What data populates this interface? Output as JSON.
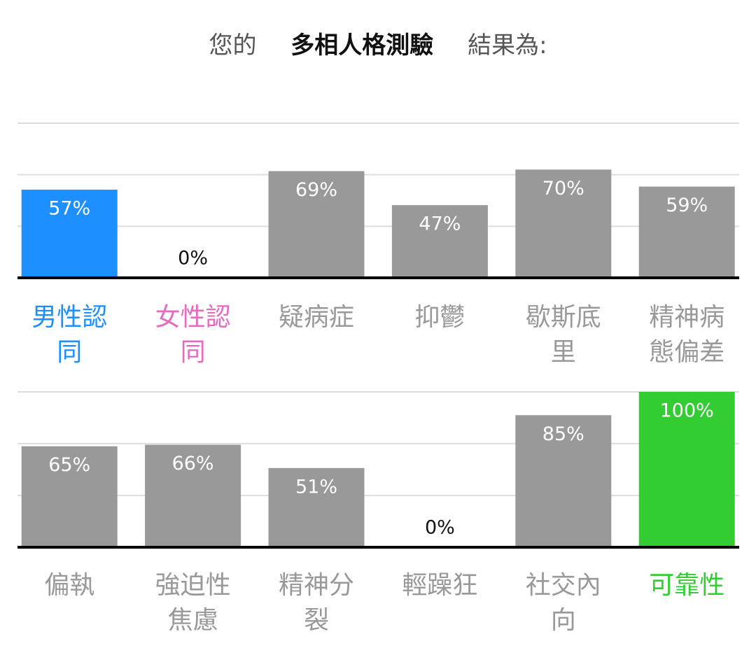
{
  "header": {
    "parts": [
      "您的",
      "多相人格測驗",
      "結果為:"
    ]
  },
  "chart_data": [
    {
      "type": "bar",
      "categories": [
        "男性認同",
        "女性認同",
        "疑病症",
        "抑鬱",
        "歇斯底里",
        "精神病態偏差"
      ],
      "values": [
        57,
        0,
        69,
        47,
        70,
        59
      ],
      "value_labels": [
        "57%",
        "0%",
        "69%",
        "47%",
        "70%",
        "59%"
      ],
      "colors": [
        "#1e8fff",
        "#999999",
        "#999999",
        "#999999",
        "#999999",
        "#999999"
      ],
      "label_colors": [
        "#1e8fff",
        "#e56bbf",
        "#999999",
        "#999999",
        "#999999",
        "#999999"
      ],
      "ylim": [
        0,
        100
      ],
      "yticks": [
        0,
        33.3,
        66.7,
        100
      ],
      "grid": true
    },
    {
      "type": "bar",
      "categories": [
        "偏執",
        "強迫性焦慮",
        "精神分裂",
        "輕躁狂",
        "社交內向",
        "可靠性"
      ],
      "values": [
        65,
        66,
        51,
        0,
        85,
        100
      ],
      "value_labels": [
        "65%",
        "66%",
        "51%",
        "0%",
        "85%",
        "100%"
      ],
      "colors": [
        "#999999",
        "#999999",
        "#999999",
        "#999999",
        "#999999",
        "#33cc33"
      ],
      "label_colors": [
        "#999999",
        "#999999",
        "#999999",
        "#999999",
        "#999999",
        "#33cc33"
      ],
      "ylim": [
        0,
        100
      ],
      "yticks": [
        0,
        33.3,
        66.7,
        100
      ],
      "grid": true
    }
  ]
}
